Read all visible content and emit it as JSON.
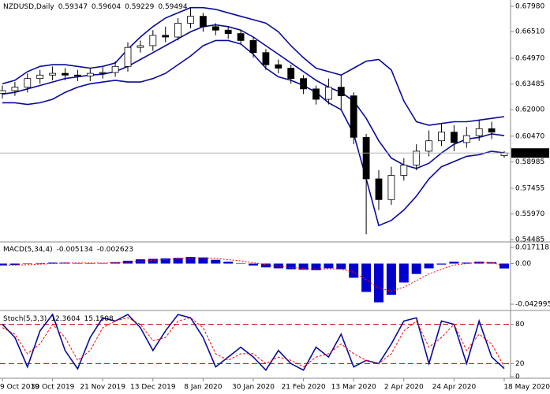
{
  "chart_data": [
    {
      "type": "candlestick",
      "title": "NZDUSD,Daily",
      "categories": [
        "9 Oct 2019",
        null,
        null,
        null,
        "30 Oct 2019",
        null,
        null,
        null,
        "21 Nov 2019",
        null,
        null,
        null,
        "13 Dec 2019",
        null,
        null,
        null,
        "8 Jan 2020",
        null,
        null,
        null,
        "30 Jan 2020",
        null,
        null,
        null,
        "21 Feb 2020",
        null,
        null,
        null,
        "13 Mar 2020",
        null,
        null,
        null,
        "2 Apr 2020",
        null,
        null,
        null,
        "24 Apr 2020",
        null,
        null,
        null,
        "18 May 2020"
      ],
      "open": [
        0.6295,
        0.631,
        0.633,
        0.638,
        0.64,
        0.641,
        0.64,
        0.6395,
        0.641,
        0.6415,
        0.645,
        0.656,
        0.657,
        0.663,
        0.662,
        0.67,
        0.674,
        0.668,
        0.666,
        0.664,
        0.66,
        0.653,
        0.646,
        0.644,
        0.638,
        0.632,
        0.626,
        0.633,
        0.628,
        0.604,
        0.58,
        0.568,
        0.582,
        0.588,
        0.596,
        0.602,
        0.607,
        0.601,
        0.605,
        0.609,
        0.59347
      ],
      "high": [
        0.634,
        0.636,
        0.641,
        0.643,
        0.645,
        0.644,
        0.643,
        0.644,
        0.6445,
        0.648,
        0.659,
        0.66,
        0.666,
        0.668,
        0.673,
        0.679,
        0.676,
        0.67,
        0.668,
        0.666,
        0.662,
        0.655,
        0.649,
        0.646,
        0.64,
        0.634,
        0.638,
        0.64,
        0.63,
        0.606,
        0.585,
        0.587,
        0.592,
        0.6,
        0.608,
        0.612,
        0.611,
        0.61,
        0.614,
        0.613,
        0.59604
      ],
      "low": [
        0.6265,
        0.628,
        0.63,
        0.635,
        0.637,
        0.637,
        0.6365,
        0.6365,
        0.638,
        0.639,
        0.642,
        0.653,
        0.654,
        0.659,
        0.66,
        0.667,
        0.665,
        0.663,
        0.661,
        0.658,
        0.65,
        0.643,
        0.641,
        0.635,
        0.629,
        0.623,
        0.623,
        0.62,
        0.6,
        0.548,
        0.562,
        0.565,
        0.579,
        0.585,
        0.593,
        0.599,
        0.596,
        0.598,
        0.602,
        0.603,
        0.59229
      ],
      "close": [
        0.631,
        0.633,
        0.638,
        0.64,
        0.641,
        0.64,
        0.6395,
        0.641,
        0.6415,
        0.645,
        0.656,
        0.657,
        0.663,
        0.662,
        0.67,
        0.674,
        0.668,
        0.666,
        0.664,
        0.66,
        0.653,
        0.646,
        0.644,
        0.638,
        0.632,
        0.626,
        0.633,
        0.628,
        0.604,
        0.58,
        0.568,
        0.582,
        0.588,
        0.596,
        0.602,
        0.607,
        0.601,
        0.605,
        0.609,
        0.607,
        0.59494
      ],
      "bands": {
        "color": "#0a0a9c",
        "upper": [
          0.635,
          0.637,
          0.642,
          0.645,
          0.646,
          0.646,
          0.645,
          0.644,
          0.645,
          0.647,
          0.655,
          0.662,
          0.668,
          0.673,
          0.676,
          0.679,
          0.679,
          0.678,
          0.676,
          0.674,
          0.672,
          0.67,
          0.665,
          0.657,
          0.65,
          0.644,
          0.642,
          0.64,
          0.644,
          0.648,
          0.649,
          0.643,
          0.625,
          0.613,
          0.611,
          0.612,
          0.613,
          0.613,
          0.614,
          0.615,
          0.616
        ],
        "middle": [
          0.629,
          0.63,
          0.632,
          0.634,
          0.636,
          0.638,
          0.639,
          0.64,
          0.6405,
          0.642,
          0.645,
          0.649,
          0.653,
          0.657,
          0.661,
          0.665,
          0.668,
          0.669,
          0.668,
          0.666,
          0.662,
          0.657,
          0.652,
          0.647,
          0.642,
          0.637,
          0.633,
          0.63,
          0.625,
          0.615,
          0.602,
          0.592,
          0.588,
          0.586,
          0.589,
          0.595,
          0.6,
          0.603,
          0.604,
          0.606,
          0.605
        ],
        "lower": [
          0.624,
          0.624,
          0.623,
          0.624,
          0.626,
          0.63,
          0.633,
          0.635,
          0.636,
          0.637,
          0.636,
          0.636,
          0.638,
          0.641,
          0.646,
          0.651,
          0.657,
          0.66,
          0.66,
          0.658,
          0.652,
          0.644,
          0.639,
          0.637,
          0.634,
          0.63,
          0.624,
          0.62,
          0.606,
          0.58,
          0.553,
          0.556,
          0.562,
          0.57,
          0.58,
          0.587,
          0.59,
          0.593,
          0.594,
          0.596,
          0.595
        ]
      },
      "up_color": "#ffffff",
      "down_color": "#000000",
      "outline_color": "#000000",
      "ylim": [
        0.544,
        0.6825
      ],
      "yticks": [
        {
          "value": 0.6798,
          "label": "0.67980"
        },
        {
          "value": 0.6651,
          "label": "0.66510"
        },
        {
          "value": 0.6497,
          "label": "0.64970"
        },
        0.63485,
        {
          "value": 0.62,
          "label": "0.62000"
        },
        {
          "value": 0.6047,
          "label": "0.60470"
        },
        0.58985,
        0.57455,
        {
          "value": 0.5597,
          "label": "0.55970"
        },
        0.54485
      ]
    },
    {
      "type": "macd",
      "title": "MACD(5,34,4)",
      "histogram": {
        "color": "#0000cc",
        "values": [
          -0.002,
          -0.0015,
          -0.0005,
          0.0005,
          0.001,
          0.001,
          0.0005,
          0.0003,
          0.0005,
          0.0015,
          0.003,
          0.0045,
          0.005,
          0.0055,
          0.006,
          0.007,
          0.0065,
          0.004,
          0.002,
          0.0005,
          -0.002,
          -0.004,
          -0.005,
          -0.006,
          -0.0065,
          -0.007,
          -0.005,
          -0.006,
          -0.015,
          -0.03,
          -0.041,
          -0.033,
          -0.02,
          -0.011,
          -0.005,
          -0.001,
          0.002,
          0.001,
          0.002,
          0.0015,
          -0.005134
        ]
      },
      "signal": {
        "color": "#ff0000",
        "values": [
          -0.0015,
          -0.0016,
          -0.0012,
          -0.0006,
          0.0,
          0.0005,
          0.0007,
          0.0006,
          0.0005,
          0.0008,
          0.0015,
          0.0025,
          0.0035,
          0.0043,
          0.005,
          0.0058,
          0.0062,
          0.0055,
          0.0042,
          0.0028,
          0.001,
          -0.001,
          -0.0028,
          -0.0042,
          -0.0052,
          -0.006,
          -0.0056,
          -0.0058,
          -0.009,
          -0.017,
          -0.026,
          -0.029,
          -0.025,
          -0.018,
          -0.011,
          -0.006,
          -0.0015,
          0.0,
          0.001,
          0.0012,
          -0.002623
        ]
      },
      "ylim": [
        -0.0488,
        0.0221
      ],
      "yticks": [
        0.017118,
        {
          "value": 0,
          "label": "0.00"
        },
        -0.042995
      ]
    },
    {
      "type": "stochastic",
      "title": "Stoch(5,3,3)",
      "main": {
        "color": "#0a0a9c",
        "values": [
          80,
          60,
          15,
          70,
          95,
          40,
          12,
          60,
          90,
          85,
          95,
          75,
          40,
          70,
          95,
          90,
          60,
          15,
          30,
          45,
          30,
          10,
          40,
          20,
          10,
          45,
          30,
          65,
          15,
          25,
          20,
          50,
          85,
          90,
          20,
          85,
          80,
          20,
          85,
          30,
          12.3604
        ]
      },
      "signal": {
        "color": "#ff0000",
        "values": [
          75,
          65,
          35,
          50,
          80,
          60,
          25,
          40,
          75,
          85,
          90,
          80,
          55,
          60,
          85,
          90,
          75,
          35,
          25,
          35,
          35,
          20,
          30,
          25,
          15,
          30,
          35,
          50,
          35,
          25,
          20,
          35,
          70,
          85,
          45,
          60,
          80,
          40,
          65,
          50,
          15.1508
        ]
      },
      "levels": [
        80,
        20
      ],
      "level_color": "#cc0000",
      "ylim": [
        0,
        100
      ],
      "yticks": [
        80,
        20,
        0
      ]
    }
  ]
}
